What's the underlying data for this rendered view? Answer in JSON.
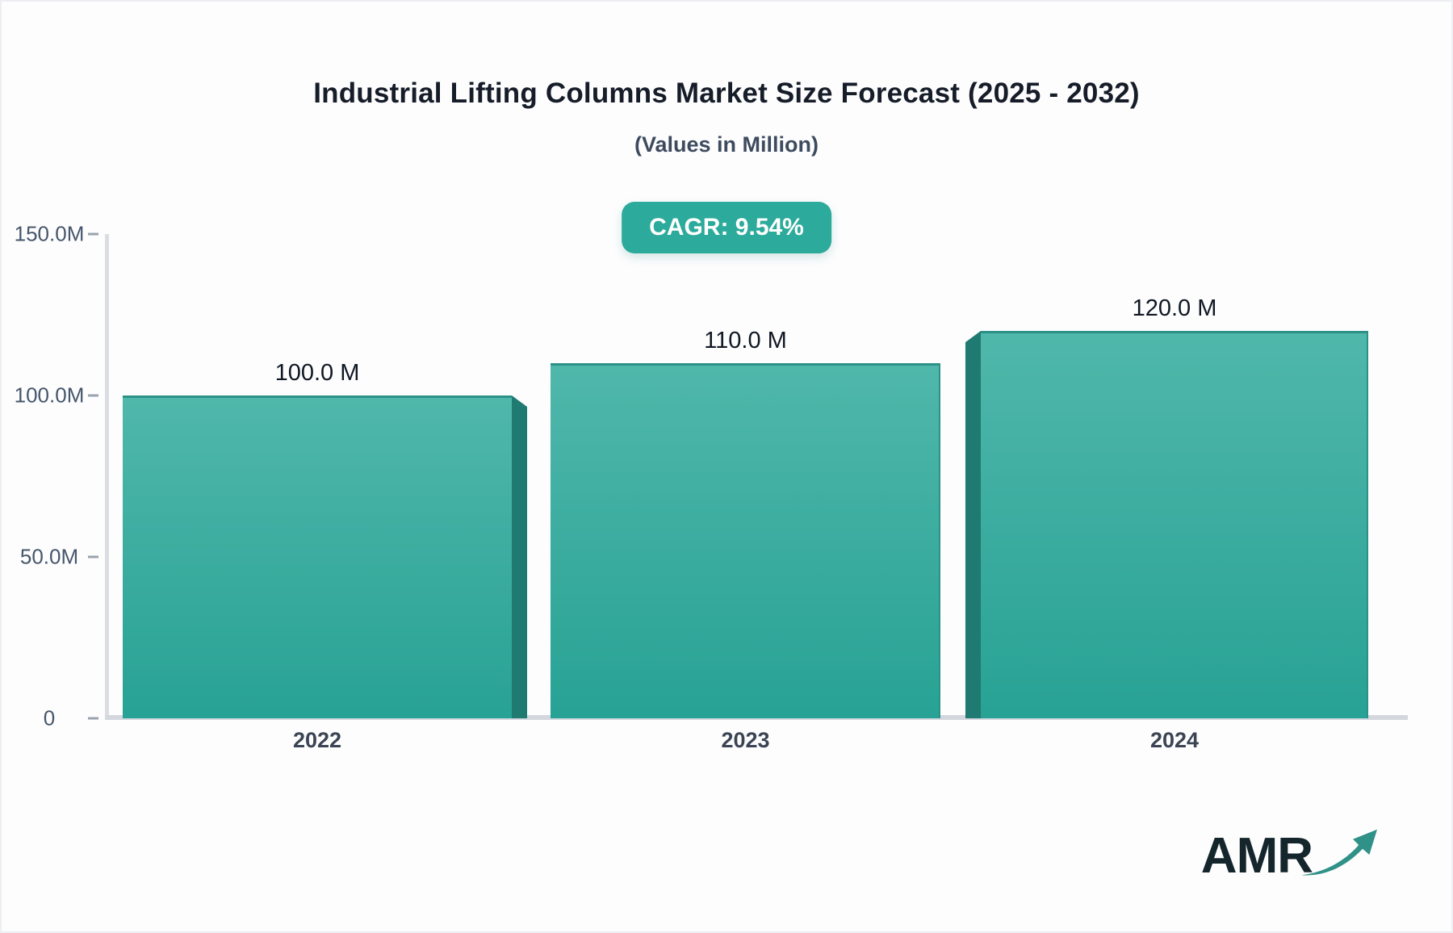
{
  "header": {
    "title": "Industrial Lifting Columns Market Size Forecast (2025 - 2032)",
    "subtitle": "(Values in Million)"
  },
  "badge": {
    "label": "CAGR: 9.54%",
    "bg_color": "#2caa9b",
    "text_color": "#ffffff"
  },
  "chart_data": {
    "type": "bar",
    "title": "Industrial Lifting Columns Market Size Forecast (2025 - 2032)",
    "subtitle": "(Values in Million)",
    "unit": "Million",
    "categories": [
      "2022",
      "2023",
      "2024"
    ],
    "values": [
      100.0,
      110.0,
      120.0
    ],
    "value_labels": [
      "100.0 M",
      "110.0 M",
      "120.0 M"
    ],
    "annotations": [
      "CAGR: 9.54%"
    ],
    "xlabel": "",
    "ylabel": "",
    "ylim": [
      0,
      150
    ],
    "yticks": [
      {
        "value": 150,
        "label": "150.0M"
      },
      {
        "value": 100,
        "label": "100.0M"
      },
      {
        "value": 50,
        "label": "50.0M"
      },
      {
        "value": 0,
        "label": "0"
      }
    ],
    "grid": false,
    "legend": false,
    "bar_style": {
      "gradient_top": "#50b7ab",
      "gradient_bottom": "#27a294",
      "edge_color": "#2c9187",
      "side_3d_color": "#1f7b71"
    },
    "bar_3d_sides": [
      "right",
      "none",
      "left"
    ]
  },
  "logo": {
    "text": "AMR",
    "arrow_icon": "growth-arrow-icon",
    "arrow_color": "#2f9187"
  }
}
